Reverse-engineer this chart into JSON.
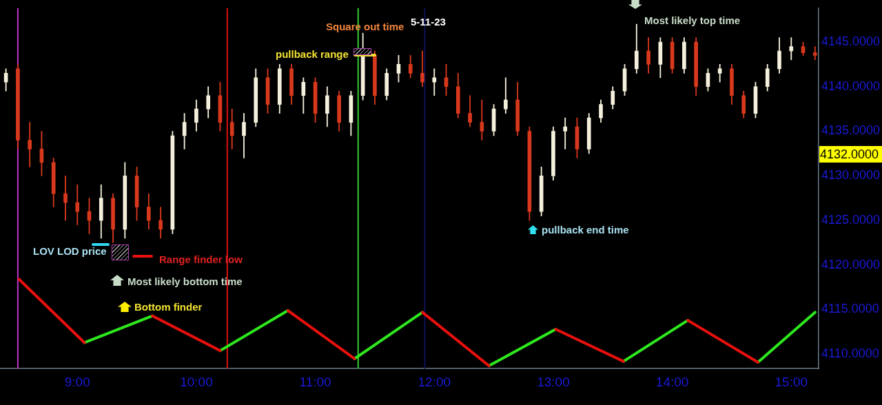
{
  "chart_data": {
    "type": "candlestick",
    "x": [
      8.4,
      8.5,
      8.6,
      8.7,
      8.8,
      8.9,
      9.0,
      9.1,
      9.2,
      9.3,
      9.4,
      9.5,
      9.6,
      9.7,
      9.8,
      9.9,
      10.0,
      10.1,
      10.2,
      10.3,
      10.4,
      10.5,
      10.6,
      10.7,
      10.8,
      10.9,
      11.0,
      11.1,
      11.2,
      11.3,
      11.4,
      11.5,
      11.6,
      11.7,
      11.8,
      11.9,
      12.0,
      12.1,
      12.2,
      12.3,
      12.4,
      12.5,
      12.6,
      12.7,
      12.8,
      12.9,
      13.0,
      13.1,
      13.2,
      13.3,
      13.4,
      13.5,
      13.6,
      13.7,
      13.8,
      13.9,
      14.0,
      14.1,
      14.2,
      14.3,
      14.4,
      14.5,
      14.6,
      14.7,
      14.8,
      14.9,
      15.0,
      15.1,
      15.2
    ],
    "ohlc": [
      [
        4140.5,
        4142,
        4139.5,
        4141.5
      ],
      [
        4142,
        4142.5,
        4133,
        4134
      ],
      [
        4134,
        4136,
        4131,
        4133
      ],
      [
        4133,
        4135,
        4130,
        4131.5
      ],
      [
        4131.5,
        4132,
        4126.5,
        4128
      ],
      [
        4128,
        4130,
        4125,
        4127
      ],
      [
        4127,
        4129,
        4124.5,
        4126
      ],
      [
        4126,
        4127.5,
        4123.5,
        4125
      ],
      [
        4125,
        4129,
        4123,
        4127.5
      ],
      [
        4127.5,
        4128,
        4122.5,
        4124
      ],
      [
        4124,
        4131.5,
        4123,
        4130
      ],
      [
        4130,
        4131,
        4125,
        4126.5
      ],
      [
        4126.5,
        4128,
        4124,
        4125
      ],
      [
        4125,
        4126.5,
        4123,
        4124
      ],
      [
        4124,
        4135,
        4123.5,
        4134.5
      ],
      [
        4134.5,
        4137,
        4133,
        4136
      ],
      [
        4136,
        4138.5,
        4135,
        4137.5
      ],
      [
        4137.5,
        4140,
        4136.5,
        4139
      ],
      [
        4139,
        4140.5,
        4135,
        4136
      ],
      [
        4136,
        4137.5,
        4133,
        4134.5
      ],
      [
        4134.5,
        4137,
        4132,
        4136
      ],
      [
        4136,
        4142,
        4135.5,
        4141
      ],
      [
        4141,
        4142,
        4137,
        4138
      ],
      [
        4138,
        4142.5,
        4137,
        4142
      ],
      [
        4142,
        4142.5,
        4138,
        4139
      ],
      [
        4139,
        4141,
        4137,
        4140.5
      ],
      [
        4140.5,
        4141,
        4136,
        4137
      ],
      [
        4137,
        4140,
        4135.5,
        4139
      ],
      [
        4139,
        4139.5,
        4135,
        4136
      ],
      [
        4136,
        4139.5,
        4134.5,
        4139
      ],
      [
        4139,
        4146,
        4138.5,
        4143.5
      ],
      [
        4143.5,
        4144,
        4138,
        4139
      ],
      [
        4139,
        4142,
        4138.5,
        4141.5
      ],
      [
        4141.5,
        4143.5,
        4140.5,
        4142.5
      ],
      [
        4142.5,
        4143.5,
        4141,
        4141.5
      ],
      [
        4141.5,
        4144,
        4140,
        4140.5
      ],
      [
        4140.5,
        4142,
        4139,
        4141
      ],
      [
        4141,
        4142.5,
        4139,
        4140
      ],
      [
        4140,
        4141.5,
        4136.5,
        4137
      ],
      [
        4137,
        4139,
        4135.5,
        4136
      ],
      [
        4136,
        4138.5,
        4134,
        4135
      ],
      [
        4135,
        4138,
        4134.5,
        4137.5
      ],
      [
        4137.5,
        4141,
        4137,
        4138.5
      ],
      [
        4138.5,
        4140.5,
        4134.5,
        4135
      ],
      [
        4135,
        4135.5,
        4125,
        4126
      ],
      [
        4126,
        4131,
        4125.5,
        4130
      ],
      [
        4130,
        4135.5,
        4129.5,
        4135
      ],
      [
        4135,
        4136.5,
        4133,
        4135.5
      ],
      [
        4135.5,
        4136.5,
        4132,
        4133
      ],
      [
        4133,
        4137,
        4132.5,
        4136.5
      ],
      [
        4136.5,
        4138.5,
        4136,
        4138
      ],
      [
        4138,
        4140,
        4137.5,
        4139.5
      ],
      [
        4139.5,
        4142.5,
        4139,
        4142
      ],
      [
        4142,
        4147,
        4141.5,
        4144
      ],
      [
        4144,
        4145.5,
        4141.5,
        4142.5
      ],
      [
        4142.5,
        4145.5,
        4141,
        4145
      ],
      [
        4145,
        4145.5,
        4141.5,
        4142
      ],
      [
        4142,
        4145.5,
        4141.5,
        4145
      ],
      [
        4145,
        4145.5,
        4139,
        4140
      ],
      [
        4140,
        4142,
        4139.5,
        4141.5
      ],
      [
        4141.5,
        4142.5,
        4140.5,
        4142
      ],
      [
        4142,
        4142.5,
        4138,
        4139
      ],
      [
        4139,
        4139.5,
        4136.5,
        4137
      ],
      [
        4137,
        4140.5,
        4136.5,
        4140
      ],
      [
        4140,
        4142.5,
        4139.5,
        4142
      ],
      [
        4142,
        4145.5,
        4141.5,
        4144
      ],
      [
        4144,
        4145.5,
        4143,
        4144.5
      ],
      [
        4144.5,
        4145,
        4143.5,
        4143.8
      ],
      [
        4143.8,
        4144.5,
        4143,
        4143.5
      ]
    ],
    "series": [
      {
        "type": "line",
        "color": "#e8100c",
        "x": [
          8.51,
          9.06,
          9.3,
          9.63,
          10.2,
          10.5,
          10.77,
          11.33,
          11.6,
          11.9,
          12.46,
          12.7,
          13.02,
          13.59,
          13.9,
          14.13,
          14.72
        ],
        "values": [
          4118.4,
          4111.3,
          null,
          4114.3,
          4110.4,
          null,
          4114.9,
          4109.5,
          null,
          4114.7,
          4108.7,
          null,
          4112.8,
          4109.2,
          null,
          4113.8,
          4109.1
        ]
      },
      {
        "type": "line",
        "color": "#2ee81e",
        "x": [
          9.06,
          9.63,
          9.9,
          10.2,
          10.77,
          11.0,
          11.33,
          11.9,
          12.2,
          12.46,
          13.02,
          13.3,
          13.59,
          14.13,
          14.4,
          14.72,
          15.2
        ],
        "values": [
          4111.3,
          4114.3,
          null,
          4110.4,
          4114.9,
          null,
          4109.5,
          4114.7,
          null,
          4108.7,
          4112.8,
          null,
          4109.2,
          4113.8,
          null,
          4109.1,
          4114.7
        ]
      }
    ],
    "xlim": [
      8.35,
      15.23
    ],
    "xticks": [
      {
        "value": 9,
        "label": "9:00"
      },
      {
        "value": 10,
        "label": "10:00"
      },
      {
        "value": 11,
        "label": "11:00"
      },
      {
        "value": 12,
        "label": "12:00"
      },
      {
        "value": 13,
        "label": "13:00"
      },
      {
        "value": 14,
        "label": "14:00"
      },
      {
        "value": 15,
        "label": "15:00"
      }
    ],
    "ylim": [
      4108.4,
      4148.8
    ],
    "yticks": [
      {
        "value": 4110,
        "label": "4110.0000"
      },
      {
        "value": 4115,
        "label": "4115.0000"
      },
      {
        "value": 4120,
        "label": "4120.0000"
      },
      {
        "value": 4125,
        "label": "4125.0000"
      },
      {
        "value": 4130,
        "label": "4130.0000"
      },
      {
        "value": 4135,
        "label": "4135.0000"
      },
      {
        "value": 4140,
        "label": "4140.0000"
      },
      {
        "value": 4145,
        "label": "4145.0000"
      }
    ],
    "ref_lines": [
      {
        "axis": "x",
        "value": 8.5,
        "color": "#c030c8"
      },
      {
        "axis": "x",
        "value": 10.26,
        "color": "#e01010"
      },
      {
        "axis": "x",
        "value": 11.36,
        "color": "#30d030"
      },
      {
        "axis": "x",
        "value": 11.92,
        "color": "#10105a"
      }
    ],
    "annotations": [
      "Square out time",
      "5-11-23",
      "pullback range",
      "Most likely top time",
      "pullback end time",
      "LOV LOD price",
      "Range finder low",
      "Most likely bottom time",
      "Bottom finder",
      "4132.0000"
    ],
    "grid": false,
    "legend": false
  }
}
